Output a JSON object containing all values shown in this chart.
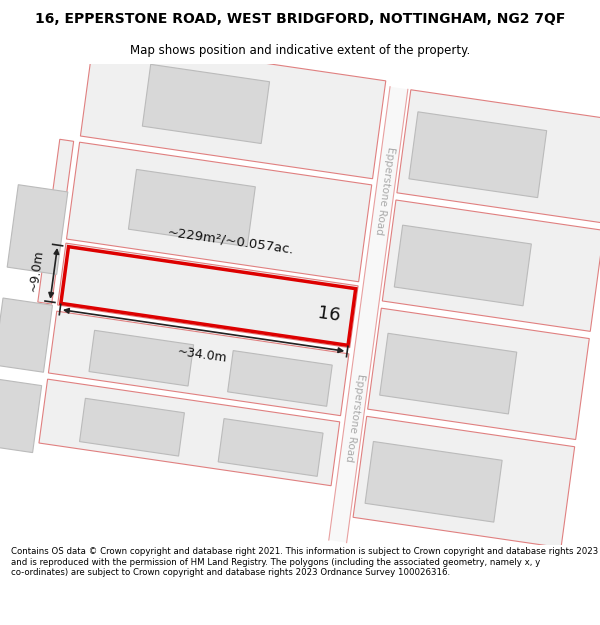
{
  "title": "16, EPPERSTONE ROAD, WEST BRIDGFORD, NOTTINGHAM, NG2 7QF",
  "subtitle": "Map shows position and indicative extent of the property.",
  "footer": "Contains OS data © Crown copyright and database right 2021. This information is subject to Crown copyright and database rights 2023 and is reproduced with the permission of HM Land Registry. The polygons (including the associated geometry, namely x, y co-ordinates) are subject to Crown copyright and database rights 2023 Ordnance Survey 100026316.",
  "map_bg": "#ffffff",
  "road_fill": "#f5f5f5",
  "road_edge": "#e8a0a0",
  "plot_fill": "#f0f0f0",
  "plot_edge": "#e08080",
  "building_fill": "#d8d8d8",
  "building_edge": "#bbbbbb",
  "highlight_fill": "#eeeeee",
  "highlight_edge": "#dd0000",
  "dim_color": "#222222",
  "road_label_color": "#aaaaaa",
  "label_16": "16",
  "area_label": "~229m²/~0.057ac.",
  "dim_width": "~34.0m",
  "dim_height": "~9.0m",
  "road_label": "Epperstone Road",
  "title_fontsize": 10,
  "subtitle_fontsize": 8.5,
  "footer_fontsize": 6.2
}
